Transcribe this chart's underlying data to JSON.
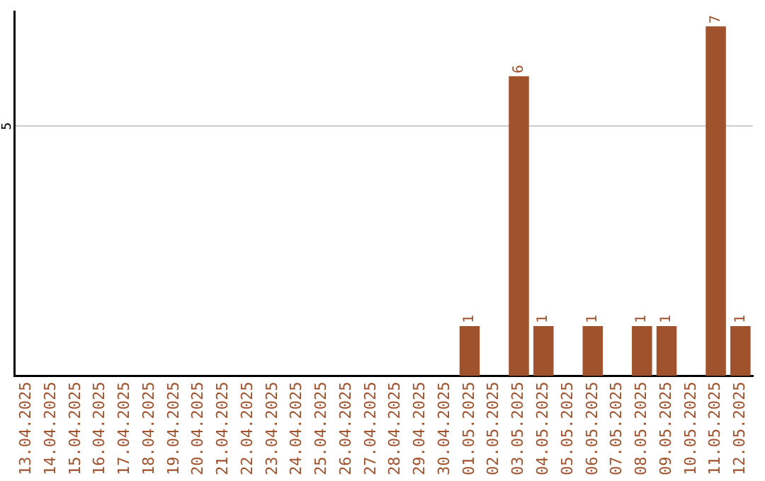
{
  "chart_data": {
    "type": "bar",
    "categories": [
      "13.04.2025",
      "14.04.2025",
      "15.04.2025",
      "16.04.2025",
      "17.04.2025",
      "18.04.2025",
      "19.04.2025",
      "20.04.2025",
      "21.04.2025",
      "22.04.2025",
      "23.04.2025",
      "24.04.2025",
      "25.04.2025",
      "26.04.2025",
      "27.04.2025",
      "28.04.2025",
      "29.04.2025",
      "30.04.2025",
      "01.05.2025",
      "02.05.2025",
      "03.05.2025",
      "04.05.2025",
      "05.05.2025",
      "06.05.2025",
      "07.05.2025",
      "08.05.2025",
      "09.05.2025",
      "10.05.2025",
      "11.05.2025",
      "12.05.2025"
    ],
    "values": [
      null,
      null,
      null,
      null,
      null,
      null,
      null,
      null,
      null,
      null,
      null,
      null,
      null,
      null,
      null,
      null,
      null,
      null,
      1,
      null,
      6,
      1,
      null,
      1,
      null,
      1,
      1,
      null,
      7,
      1
    ],
    "data_labels": true,
    "color": "#a0522d",
    "ylim": [
      0,
      7.3
    ],
    "yticks": [
      5
    ],
    "grid": "y",
    "legend": false
  }
}
